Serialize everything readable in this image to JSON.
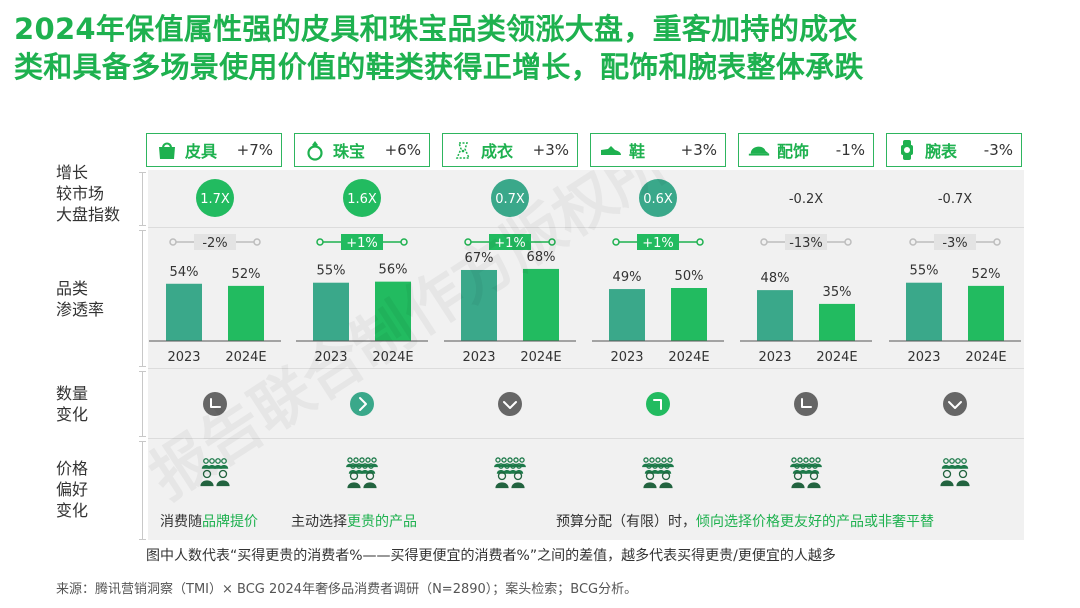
{
  "title": {
    "line1": "2024年保值属性强的皮具和珠宝品类领涨大盘，重客加持的成衣",
    "line2": "类和具备多场景使用价值的鞋类获得正增长，配饰和腕表整体承跌"
  },
  "row_labels": {
    "growth": [
      "增长",
      "较市场",
      "大盘指数"
    ],
    "penetration": [
      "品类",
      "渗透率"
    ],
    "quantity": [
      "数量",
      "变化"
    ],
    "price": [
      "价格",
      "偏好",
      "变化"
    ]
  },
  "categories": [
    {
      "name": "皮具",
      "change": "+7%",
      "icon": "handbag-icon"
    },
    {
      "name": "珠宝",
      "change": "+6%",
      "icon": "ring-icon"
    },
    {
      "name": "成衣",
      "change": "+3%",
      "icon": "dress-icon"
    },
    {
      "name": "鞋",
      "change": "+3%",
      "icon": "shoe-icon"
    },
    {
      "name": "配饰",
      "change": "-1%",
      "icon": "cap-icon"
    },
    {
      "name": "腕表",
      "change": "-3%",
      "icon": "watch-icon"
    }
  ],
  "growth_index": [
    {
      "label": "1.7X",
      "highlight": true
    },
    {
      "label": "1.6X",
      "highlight": true
    },
    {
      "label": "0.7X",
      "highlight": true
    },
    {
      "label": "0.6X",
      "highlight": true
    },
    {
      "label": "-0.2X",
      "highlight": false
    },
    {
      "label": "-0.7X",
      "highlight": false
    }
  ],
  "chart_data": {
    "type": "bar",
    "title": "品类渗透率",
    "years": [
      "2023",
      "2024E"
    ],
    "series": [
      {
        "name": "2023",
        "values": [
          54,
          55,
          67,
          49,
          48,
          55
        ]
      },
      {
        "name": "2024E",
        "values": [
          52,
          56,
          68,
          50,
          35,
          52
        ]
      }
    ],
    "value_labels_2023": [
      "54%",
      "55%",
      "67%",
      "49%",
      "48%",
      "55%"
    ],
    "value_labels_2024": [
      "52%",
      "56%",
      "68%",
      "50%",
      "35%",
      "52%"
    ],
    "diff_labels": [
      "-2%",
      "+1%",
      "+1%",
      "+1%",
      "-13%",
      "-3%"
    ],
    "diff_positive": [
      false,
      true,
      true,
      true,
      false,
      false
    ],
    "ylim": [
      0,
      100
    ],
    "colors": {
      "2023": "#3aa88a",
      "2024E": "#22bb60"
    }
  },
  "quantity_icons": [
    "flat-icon",
    "right-arrow-icon",
    "down-arrow-icon",
    "up-arrow-icon",
    "flat-icon",
    "down-arrow-icon"
  ],
  "quantity_highlight": [
    false,
    true,
    false,
    true,
    false,
    false
  ],
  "price_texts": {
    "t1a": "消费随",
    "t1b": "品牌提价",
    "t2a": "主动选择",
    "t2b": "更贵的产品",
    "t3a": "预算分配（有限）时，",
    "t3b": "倾向选择价格更友好的产品或非奢平替"
  },
  "people_counts": [
    6,
    10,
    10,
    10,
    10,
    6
  ],
  "note": "图中人数代表“买得更贵的消费者%——买得更便宜的消费者%”之间的差值，越多代表买得更贵/更便宜的人越多",
  "source": "来源：腾讯营销洞察（TMI）× BCG 2024年奢侈品消费者调研（N=2890）；案头检索；BCG分析。",
  "watermark": "报告联合制作方版权所有",
  "colors": {
    "green": "#1eb14f",
    "teal": "#3aa88a",
    "gray_circle": "#666666",
    "panel": "#f1f1f1"
  }
}
